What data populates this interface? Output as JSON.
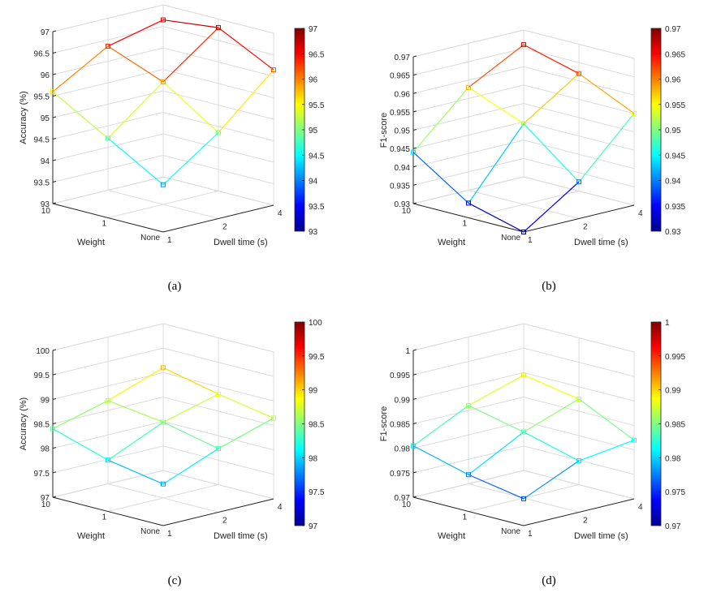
{
  "panels": [
    {
      "caption": "(a)",
      "chart_data": {
        "type": "line3d",
        "zlabel": "Accuracy (%)",
        "xlabel": "Weight",
        "ylabel": "Dwell time (s)",
        "weight_ticks": [
          "10",
          "1",
          "None"
        ],
        "dwell_ticks": [
          "1",
          "2",
          "4"
        ],
        "zlim": [
          93,
          97
        ],
        "z_ticks": [
          "93",
          "93.5",
          "94",
          "94.5",
          "95",
          "95.5",
          "96",
          "96.5",
          "97"
        ],
        "colorbar_ticks": [
          "93",
          "93.5",
          "94",
          "94.5",
          "95",
          "95.5",
          "96",
          "96.5",
          "97"
        ],
        "clim": [
          93,
          97
        ],
        "values": [
          [
            95.6,
            96.35,
            96.65
          ],
          [
            94.85,
            95.85,
            96.8
          ],
          [
            94.1,
            95.0,
            96.15
          ]
        ]
      }
    },
    {
      "caption": "(b)",
      "chart_data": {
        "type": "line3d",
        "zlabel": "F1-score",
        "xlabel": "Weight",
        "ylabel": "Dwell time (s)",
        "weight_ticks": [
          "10",
          "1",
          "None"
        ],
        "dwell_ticks": [
          "1",
          "2",
          "4"
        ],
        "zlim": [
          0.93,
          0.97
        ],
        "z_ticks": [
          "0.93",
          "0.935",
          "0.94",
          "0.945",
          "0.95",
          "0.955",
          "0.96",
          "0.965",
          "0.97"
        ],
        "colorbar_ticks": [
          "0.93",
          "0.935",
          "0.94",
          "0.945",
          "0.95",
          "0.955",
          "0.96",
          "0.965",
          "0.97"
        ],
        "clim": [
          0.93,
          0.97
        ],
        "values": [
          [
            0.944,
            0.958,
            0.966
          ],
          [
            0.934,
            0.952,
            0.962
          ],
          [
            0.93,
            0.94,
            0.955
          ]
        ]
      }
    },
    {
      "caption": "(c)",
      "chart_data": {
        "type": "line3d",
        "zlabel": "Accuracy (%)",
        "xlabel": "Weight",
        "ylabel": "Dwell time (s)",
        "weight_ticks": [
          "10",
          "1",
          "None"
        ],
        "dwell_ticks": [
          "1",
          "2",
          "4"
        ],
        "zlim": [
          97,
          100
        ],
        "z_ticks": [
          "97",
          "97.5",
          "98",
          "98.5",
          "99",
          "99.5",
          "100"
        ],
        "colorbar_ticks": [
          "97",
          "97.5",
          "98",
          "98.5",
          "99",
          "99.5",
          "100"
        ],
        "clim": [
          97,
          100
        ],
        "values": [
          [
            98.4,
            98.7,
            99.1
          ],
          [
            98.05,
            98.55,
            98.85
          ],
          [
            97.85,
            98.3,
            98.65
          ]
        ]
      }
    },
    {
      "caption": "(d)",
      "chart_data": {
        "type": "line3d",
        "zlabel": "F1-score",
        "xlabel": "Weight",
        "ylabel": "Dwell time (s)",
        "weight_ticks": [
          "10",
          "1",
          "None"
        ],
        "dwell_ticks": [
          "1",
          "2",
          "4"
        ],
        "zlim": [
          0.97,
          1
        ],
        "z_ticks": [
          "0.97",
          "0.975",
          "0.98",
          "0.985",
          "0.99",
          "0.995",
          "1"
        ],
        "colorbar_ticks": [
          "0.97",
          "0.975",
          "0.98",
          "0.985",
          "0.99",
          "0.995",
          "1"
        ],
        "clim": [
          0.97,
          1
        ],
        "values": [
          [
            0.9805,
            0.986,
            0.9895
          ],
          [
            0.9775,
            0.9835,
            0.9875
          ],
          [
            0.9755,
            0.9805,
            0.982
          ]
        ]
      }
    }
  ]
}
